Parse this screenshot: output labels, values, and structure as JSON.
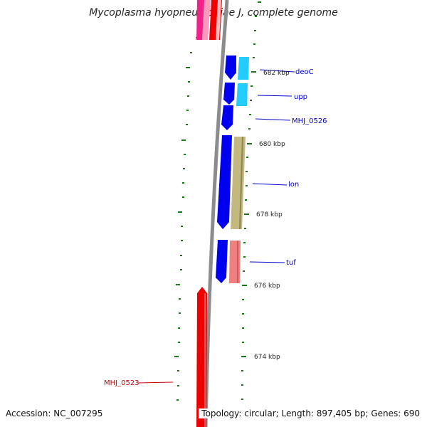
{
  "title": "Mycoplasma hyopneumoniae J, complete genome",
  "footer": {
    "accession": "Accession: NC_007295",
    "topology": "Topology: circular; Length: 897,405 bp; Genes: 690"
  },
  "colors": {
    "backbone": "#8c8c8c",
    "tick": "#1a7a1a",
    "gene_label_blue": "#0000cc",
    "gene_label_red": "#cc0000"
  },
  "kbp_labels": [
    "682 kbp",
    "680 kbp",
    "678 kbp",
    "676 kbp",
    "674 kbp"
  ],
  "gene_labels": [
    {
      "text": "deoC",
      "color": "blue"
    },
    {
      "text": "upp",
      "color": "blue"
    },
    {
      "text": "MHJ_0526",
      "color": "blue"
    },
    {
      "text": "lon",
      "color": "blue"
    },
    {
      "text": "tuf",
      "color": "blue"
    },
    {
      "text": "MHJ_0523",
      "color": "red"
    }
  ]
}
